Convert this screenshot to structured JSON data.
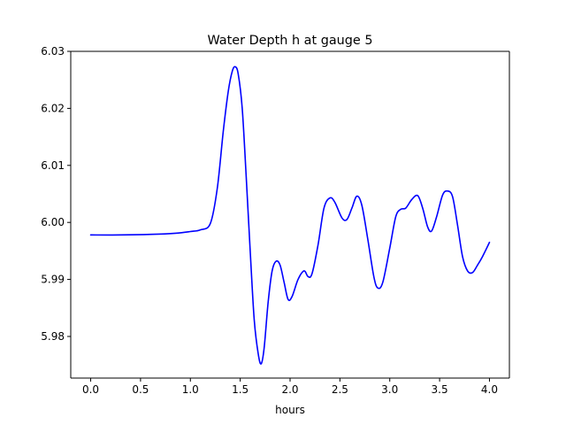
{
  "chart_data": {
    "type": "line",
    "title": "Water Depth h at gauge 5",
    "xlabel": "hours",
    "ylabel": "",
    "xlim": [
      -0.2,
      4.2
    ],
    "ylim": [
      5.9727,
      6.03
    ],
    "xticks": [
      0.0,
      0.5,
      1.0,
      1.5,
      2.0,
      2.5,
      3.0,
      3.5,
      4.0
    ],
    "xtick_labels": [
      "0.0",
      "0.5",
      "1.0",
      "1.5",
      "2.0",
      "2.5",
      "3.0",
      "3.5",
      "4.0"
    ],
    "yticks": [
      5.98,
      5.99,
      6.0,
      6.01,
      6.02,
      6.03
    ],
    "ytick_labels": [
      "5.98",
      "5.99",
      "6.00",
      "6.01",
      "6.02",
      "6.03"
    ],
    "grid": false,
    "series": [
      {
        "color": "#0000ff",
        "points": [
          [
            0.0,
            5.9978
          ],
          [
            0.3,
            5.9978
          ],
          [
            0.6,
            5.9979
          ],
          [
            0.85,
            5.9981
          ],
          [
            1.0,
            5.9984
          ],
          [
            1.1,
            5.9987
          ],
          [
            1.2,
            5.9998
          ],
          [
            1.27,
            6.006
          ],
          [
            1.33,
            6.016
          ],
          [
            1.38,
            6.023
          ],
          [
            1.42,
            6.0265
          ],
          [
            1.45,
            6.0273
          ],
          [
            1.48,
            6.026
          ],
          [
            1.52,
            6.02
          ],
          [
            1.56,
            6.008
          ],
          [
            1.6,
            5.995
          ],
          [
            1.64,
            5.983
          ],
          [
            1.68,
            5.977
          ],
          [
            1.71,
            5.9752
          ],
          [
            1.74,
            5.978
          ],
          [
            1.78,
            5.986
          ],
          [
            1.82,
            5.9915
          ],
          [
            1.86,
            5.9932
          ],
          [
            1.9,
            5.9925
          ],
          [
            1.94,
            5.9895
          ],
          [
            1.98,
            5.9865
          ],
          [
            2.02,
            5.987
          ],
          [
            2.08,
            5.99
          ],
          [
            2.14,
            5.9915
          ],
          [
            2.18,
            5.9905
          ],
          [
            2.22,
            5.991
          ],
          [
            2.28,
            5.996
          ],
          [
            2.34,
            6.0025
          ],
          [
            2.4,
            6.0043
          ],
          [
            2.45,
            6.0035
          ],
          [
            2.52,
            6.0008
          ],
          [
            2.57,
            6.0005
          ],
          [
            2.62,
            6.0025
          ],
          [
            2.67,
            6.0046
          ],
          [
            2.72,
            6.003
          ],
          [
            2.78,
            5.997
          ],
          [
            2.84,
            5.9905
          ],
          [
            2.88,
            5.9885
          ],
          [
            2.93,
            5.9895
          ],
          [
            3.0,
            5.9955
          ],
          [
            3.06,
            6.001
          ],
          [
            3.11,
            6.0023
          ],
          [
            3.16,
            6.0025
          ],
          [
            3.22,
            6.004
          ],
          [
            3.28,
            6.0047
          ],
          [
            3.33,
            6.0025
          ],
          [
            3.38,
            5.9992
          ],
          [
            3.42,
            5.9985
          ],
          [
            3.47,
            6.001
          ],
          [
            3.53,
            6.0048
          ],
          [
            3.58,
            6.0055
          ],
          [
            3.63,
            6.0045
          ],
          [
            3.68,
            5.9995
          ],
          [
            3.73,
            5.994
          ],
          [
            3.78,
            5.9915
          ],
          [
            3.83,
            5.9912
          ],
          [
            3.88,
            5.9925
          ],
          [
            3.93,
            5.994
          ],
          [
            4.0,
            5.9965
          ]
        ]
      }
    ]
  }
}
